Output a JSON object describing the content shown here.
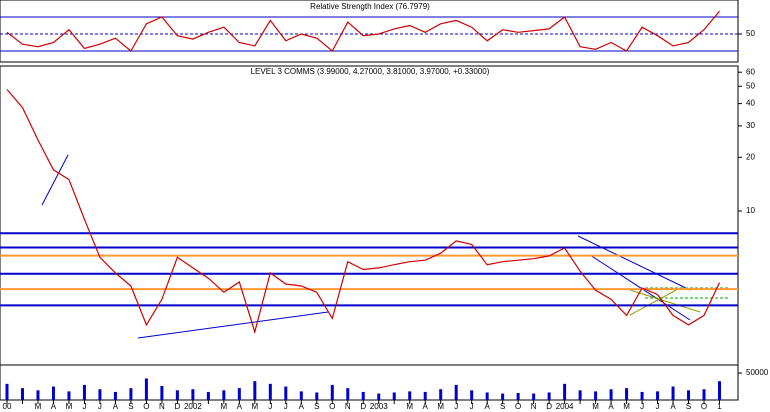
{
  "chart_data": [
    {
      "type": "line",
      "title": "Relative Strength Index (76.7979)",
      "color": "#d00000",
      "values": [
        52,
        38,
        35,
        40,
        55,
        33,
        38,
        45,
        30,
        62,
        70,
        48,
        44,
        52,
        58,
        40,
        36,
        66,
        42,
        50,
        45,
        30,
        64,
        48,
        50,
        56,
        60,
        52,
        62,
        66,
        58,
        42,
        55,
        52,
        54,
        56,
        70,
        35,
        32,
        40,
        30,
        58,
        48,
        36,
        40,
        55,
        76.7979
      ],
      "ylim": [
        17,
        90
      ],
      "yticks": [
        50
      ],
      "ref_lines": [
        30,
        70
      ]
    },
    {
      "type": "line",
      "title": "LEVEL 3 COMMS (3.99000, 4.27000, 3.81000, 3.97000, +0.33000)",
      "color": "#d00000",
      "log_scale": true,
      "values": [
        48,
        38,
        25,
        17,
        15,
        9,
        5.5,
        4.5,
        3.8,
        2.3,
        3.2,
        5.5,
        4.8,
        4.2,
        3.5,
        4.0,
        2.1,
        4.5,
        3.9,
        3.8,
        3.5,
        2.5,
        5.2,
        4.7,
        4.8,
        5.0,
        5.2,
        5.3,
        5.8,
        6.8,
        6.5,
        5.0,
        5.2,
        5.3,
        5.4,
        5.6,
        6.2,
        4.6,
        3.6,
        3.2,
        2.6,
        3.7,
        3.4,
        2.6,
        2.3,
        2.6,
        3.97
      ],
      "ylim": [
        1.37,
        65
      ],
      "yticks": [
        60,
        50,
        40,
        30,
        20,
        10
      ],
      "hlines": [
        {
          "value": 7.5,
          "color": "#0000cc"
        },
        {
          "value": 6.24,
          "color": "#0000cc"
        },
        {
          "value": 5.62,
          "color": "#ff9933"
        },
        {
          "value": 4.45,
          "color": "#0000cc"
        },
        {
          "value": 3.65,
          "color": "#ff9933"
        },
        {
          "value": 2.96,
          "color": "#0000cc"
        }
      ]
    },
    {
      "type": "bar",
      "color": "#0000cc",
      "categories": [
        "00",
        null,
        "M",
        "A",
        "M",
        "J",
        "J",
        "A",
        "S",
        "O",
        "N",
        "D",
        "2002",
        null,
        "M",
        "A",
        "M",
        "J",
        "J",
        "A",
        "S",
        "O",
        "N",
        "D",
        "2003",
        null,
        "M",
        "A",
        "M",
        "J",
        "J",
        "A",
        "S",
        "O",
        "N",
        "D",
        "2004",
        null,
        "M",
        "A",
        "M",
        "J",
        "J",
        "A",
        "S",
        "O",
        "1"
      ],
      "values": [
        30000,
        22000,
        18000,
        25000,
        16000,
        28000,
        20000,
        15000,
        22000,
        40000,
        26000,
        18000,
        20000,
        15000,
        18000,
        22000,
        35000,
        30000,
        25000,
        16000,
        14000,
        28000,
        22000,
        15000,
        12000,
        14000,
        16000,
        15000,
        20000,
        28000,
        18000,
        14000,
        12000,
        13000,
        12000,
        14000,
        30000,
        18000,
        16000,
        20000,
        22000,
        15000,
        16000,
        25000,
        18000,
        20000,
        35000
      ],
      "ylim": [
        0,
        65000
      ],
      "yticks": [
        50000
      ]
    }
  ]
}
